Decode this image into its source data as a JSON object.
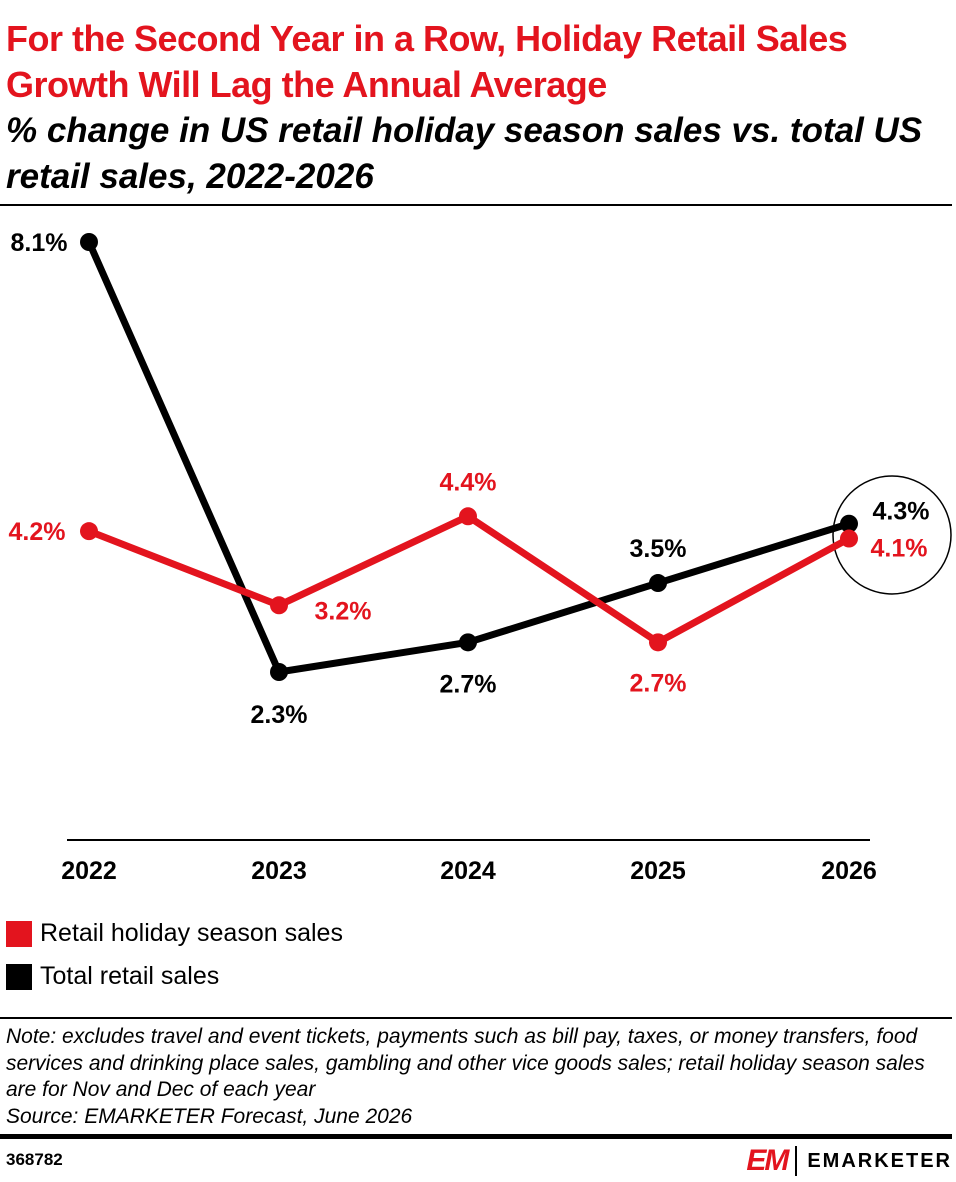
{
  "header": {
    "title": "For the Second Year in a Row, Holiday Retail Sales Growth Will Lag the Annual Average",
    "subtitle": "% change in US retail holiday season sales vs. total US retail sales, 2022-2026"
  },
  "colors": {
    "holiday": "#e3141e",
    "total": "#000000",
    "accent": "#e3141e"
  },
  "chart_data": {
    "type": "line",
    "categories": [
      "2022",
      "2023",
      "2024",
      "2025",
      "2026"
    ],
    "series": [
      {
        "name": "Retail holiday season sales",
        "values": [
          4.2,
          3.2,
          4.4,
          2.7,
          4.1
        ],
        "labels": [
          "4.2%",
          "3.2%",
          "4.4%",
          "2.7%",
          "4.1%"
        ],
        "color": "#e3141e"
      },
      {
        "name": "Total retail sales",
        "values": [
          8.1,
          2.3,
          2.7,
          3.5,
          4.3
        ],
        "labels": [
          "8.1%",
          "2.3%",
          "2.7%",
          "3.5%",
          "4.3%"
        ],
        "color": "#000000"
      }
    ],
    "highlight": "2026",
    "legend_position": "bottom-left"
  },
  "legend": {
    "items": [
      {
        "label": "Retail holiday season sales",
        "color": "#e3141e"
      },
      {
        "label": "Total retail sales",
        "color": "#000000"
      }
    ]
  },
  "footer": {
    "note": "Note: excludes travel and event tickets, payments such as bill pay, taxes, or money transfers, food services and drinking place sales, gambling and other vice goods sales; retail holiday season sales are for Nov and Dec of each year",
    "source": "Source: EMARKETER Forecast, June 2026",
    "chart_id": "368782",
    "brand_mark": "EM",
    "brand_name": "EMARKETER"
  }
}
